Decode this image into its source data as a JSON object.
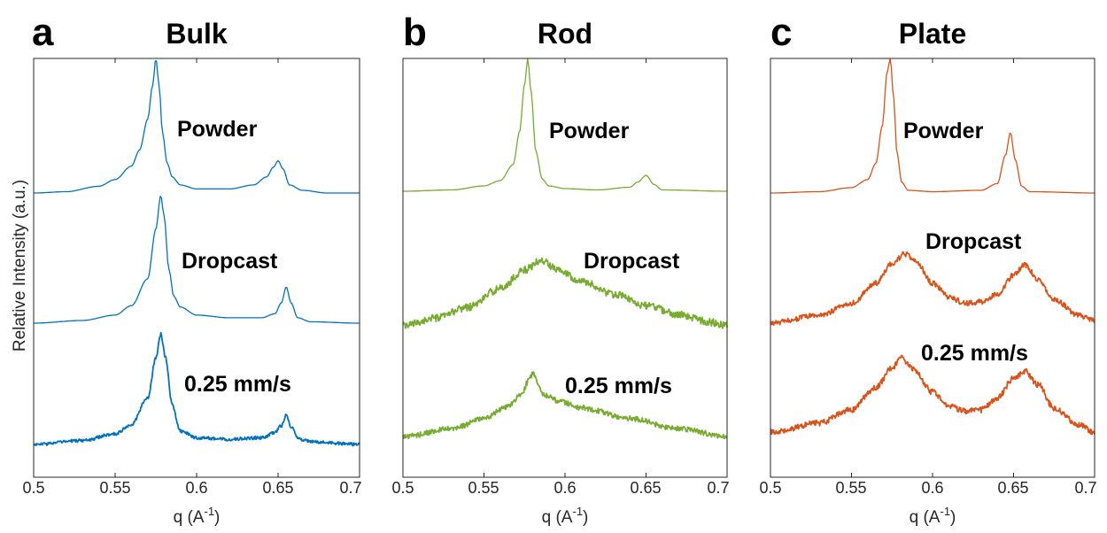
{
  "figure": {
    "ylabel": "Relative Intensity (a.u.)",
    "xlabel_base": "q (A",
    "xlabel_sup": "-1",
    "xlabel_close": ")"
  },
  "chart_data": [
    {
      "type": "line",
      "panel_letter": "a",
      "title": "Bulk",
      "color": "#0072BD",
      "xlim": [
        0.5,
        0.7
      ],
      "xticks": [
        "0.5",
        "0.55",
        "0.6",
        "0.65",
        "0.7"
      ],
      "series": [
        {
          "name": "Powder",
          "noise": 0,
          "width": 1.3,
          "x": [
            0.5,
            0.52,
            0.54,
            0.55,
            0.56,
            0.565,
            0.57,
            0.573,
            0.575,
            0.577,
            0.579,
            0.582,
            0.585,
            0.59,
            0.6,
            0.62,
            0.635,
            0.643,
            0.647,
            0.65,
            0.653,
            0.657,
            0.665,
            0.68,
            0.7
          ],
          "y": [
            0.0,
            0.01,
            0.05,
            0.1,
            0.2,
            0.32,
            0.55,
            0.8,
            1.0,
            0.8,
            0.45,
            0.22,
            0.12,
            0.06,
            0.03,
            0.03,
            0.06,
            0.12,
            0.19,
            0.24,
            0.18,
            0.06,
            0.02,
            0.0,
            0.0
          ]
        },
        {
          "name": "Dropcast",
          "noise": 0,
          "width": 1.3,
          "x": [
            0.5,
            0.53,
            0.55,
            0.56,
            0.57,
            0.575,
            0.578,
            0.58,
            0.583,
            0.586,
            0.59,
            0.6,
            0.62,
            0.64,
            0.648,
            0.652,
            0.655,
            0.658,
            0.662,
            0.67,
            0.7
          ],
          "y": [
            0.0,
            0.02,
            0.06,
            0.13,
            0.33,
            0.7,
            0.95,
            0.8,
            0.4,
            0.2,
            0.12,
            0.06,
            0.04,
            0.04,
            0.07,
            0.15,
            0.27,
            0.15,
            0.04,
            0.01,
            0.0
          ]
        },
        {
          "name": "0.25 mm/s",
          "noise": 0.012,
          "width": 1.8,
          "x": [
            0.5,
            0.53,
            0.55,
            0.56,
            0.57,
            0.575,
            0.578,
            0.581,
            0.585,
            0.59,
            0.6,
            0.62,
            0.64,
            0.648,
            0.652,
            0.655,
            0.658,
            0.663,
            0.67,
            0.7
          ],
          "y": [
            0.0,
            0.03,
            0.08,
            0.15,
            0.35,
            0.65,
            0.83,
            0.65,
            0.3,
            0.1,
            0.05,
            0.04,
            0.05,
            0.09,
            0.14,
            0.22,
            0.13,
            0.04,
            0.02,
            0.0
          ]
        }
      ]
    },
    {
      "type": "line",
      "panel_letter": "b",
      "title": "Rod",
      "color": "#77AC30",
      "xlim": [
        0.5,
        0.7
      ],
      "xticks": [
        "0.5",
        "0.55",
        "0.6",
        "0.65",
        "0.7"
      ],
      "series": [
        {
          "name": "Powder",
          "noise": 0,
          "width": 1.3,
          "x": [
            0.5,
            0.53,
            0.55,
            0.56,
            0.568,
            0.572,
            0.575,
            0.577,
            0.579,
            0.582,
            0.586,
            0.59,
            0.6,
            0.62,
            0.64,
            0.645,
            0.65,
            0.655,
            0.66,
            0.7
          ],
          "y": [
            0.0,
            0.01,
            0.04,
            0.08,
            0.2,
            0.45,
            0.8,
            1.0,
            0.75,
            0.3,
            0.09,
            0.04,
            0.02,
            0.01,
            0.03,
            0.07,
            0.12,
            0.05,
            0.01,
            0.0
          ]
        },
        {
          "name": "Dropcast",
          "noise": 0.02,
          "width": 1.8,
          "x": [
            0.5,
            0.52,
            0.54,
            0.56,
            0.575,
            0.585,
            0.595,
            0.61,
            0.63,
            0.65,
            0.67,
            0.69,
            0.7
          ],
          "y": [
            0.0,
            0.04,
            0.1,
            0.2,
            0.3,
            0.35,
            0.31,
            0.24,
            0.17,
            0.11,
            0.06,
            0.02,
            0.0
          ]
        },
        {
          "name": "0.25 mm/s",
          "noise": 0.018,
          "width": 1.8,
          "x": [
            0.5,
            0.53,
            0.55,
            0.565,
            0.573,
            0.578,
            0.58,
            0.583,
            0.587,
            0.595,
            0.61,
            0.64,
            0.67,
            0.7
          ],
          "y": [
            0.0,
            0.05,
            0.12,
            0.2,
            0.28,
            0.38,
            0.42,
            0.36,
            0.28,
            0.24,
            0.19,
            0.12,
            0.05,
            0.0
          ]
        }
      ]
    },
    {
      "type": "line",
      "panel_letter": "c",
      "title": "Plate",
      "color": "#D95319",
      "xlim": [
        0.5,
        0.7
      ],
      "xticks": [
        "0.5",
        "0.55",
        "0.6",
        "0.65",
        "0.7"
      ],
      "series": [
        {
          "name": "Powder",
          "noise": 0,
          "width": 1.3,
          "x": [
            0.5,
            0.53,
            0.55,
            0.56,
            0.565,
            0.569,
            0.572,
            0.574,
            0.576,
            0.578,
            0.581,
            0.585,
            0.6,
            0.63,
            0.64,
            0.645,
            0.648,
            0.651,
            0.655,
            0.66,
            0.7
          ],
          "y": [
            0.0,
            0.01,
            0.04,
            0.1,
            0.22,
            0.5,
            0.9,
            1.0,
            0.7,
            0.3,
            0.08,
            0.02,
            0.01,
            0.02,
            0.07,
            0.28,
            0.45,
            0.25,
            0.05,
            0.01,
            0.0
          ]
        },
        {
          "name": "Dropcast",
          "noise": 0.02,
          "width": 1.8,
          "x": [
            0.5,
            0.53,
            0.55,
            0.565,
            0.575,
            0.583,
            0.59,
            0.6,
            0.61,
            0.62,
            0.63,
            0.64,
            0.65,
            0.657,
            0.665,
            0.675,
            0.69,
            0.7
          ],
          "y": [
            0.0,
            0.06,
            0.15,
            0.3,
            0.45,
            0.52,
            0.46,
            0.3,
            0.2,
            0.15,
            0.16,
            0.22,
            0.36,
            0.44,
            0.33,
            0.18,
            0.06,
            0.02
          ]
        },
        {
          "name": "0.25 mm/s",
          "noise": 0.02,
          "width": 1.8,
          "x": [
            0.5,
            0.53,
            0.55,
            0.565,
            0.575,
            0.581,
            0.588,
            0.6,
            0.61,
            0.62,
            0.63,
            0.64,
            0.65,
            0.657,
            0.665,
            0.675,
            0.69,
            0.7
          ],
          "y": [
            0.0,
            0.06,
            0.15,
            0.3,
            0.43,
            0.5,
            0.42,
            0.27,
            0.18,
            0.14,
            0.15,
            0.23,
            0.36,
            0.41,
            0.32,
            0.16,
            0.05,
            0.0
          ]
        }
      ]
    }
  ]
}
